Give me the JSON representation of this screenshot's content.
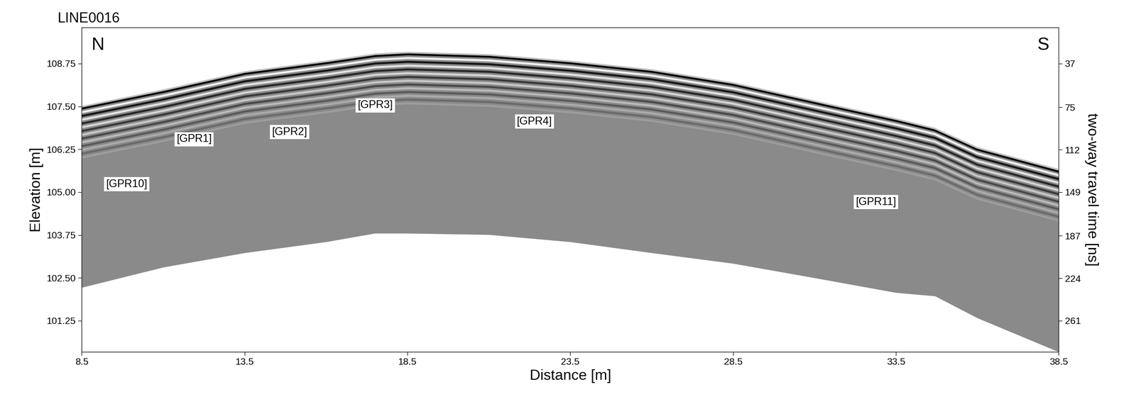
{
  "chart_data": {
    "type": "radargram",
    "title": "LINE0016",
    "xlabel": "Distance [m]",
    "ylabel": "Elevation [m]",
    "y2label": "two-way travel time [ns]",
    "corner_labels": {
      "left": "N",
      "right": "S"
    },
    "x": [
      8.5,
      11,
      13.5,
      16,
      17.5,
      18.5,
      21,
      23.5,
      26,
      28.5,
      31,
      33.5,
      34.7,
      36,
      38.5
    ],
    "surface": [
      107.49,
      107.97,
      108.5,
      108.81,
      109.02,
      109.07,
      109.0,
      108.81,
      108.56,
      108.18,
      107.65,
      107.13,
      106.85,
      106.29,
      105.65
    ],
    "bottom": [
      102.22,
      102.81,
      103.23,
      103.55,
      103.8,
      103.8,
      103.76,
      103.55,
      103.23,
      102.92,
      102.5,
      102.07,
      101.97,
      101.33,
      100.34
    ],
    "color": "#8a8a8a",
    "xlim": [
      8.5,
      38.5
    ],
    "xticks": [
      8.5,
      13.5,
      18.5,
      23.5,
      28.5,
      33.5,
      38.5
    ],
    "ylim": [
      100.34,
      109.8
    ],
    "yticks": [
      101.25,
      {
        "value": 102.5,
        "label": "102.50"
      },
      103.75,
      {
        "value": 105.0,
        "label": "105.00"
      },
      106.25,
      {
        "value": 107.5,
        "label": "107.50"
      },
      108.75
    ],
    "y2lim": [
      288.2,
      5.6
    ],
    "y2ticks": [
      37,
      75,
      112,
      149,
      187,
      224,
      261
    ],
    "annotations": [
      {
        "text": "[GPR10]",
        "x": 9.88,
        "y": 105.23
      },
      {
        "text": "[GPR1]",
        "x": 11.95,
        "y": 106.54
      },
      {
        "text": "[GPR2]",
        "x": 14.88,
        "y": 106.75
      },
      {
        "text": "[GPR3]",
        "x": 17.51,
        "y": 107.53
      },
      {
        "text": "[GPR4]",
        "x": 22.4,
        "y": 107.06
      },
      {
        "text": "[GPR11]",
        "x": 32.89,
        "y": 104.71
      }
    ]
  }
}
